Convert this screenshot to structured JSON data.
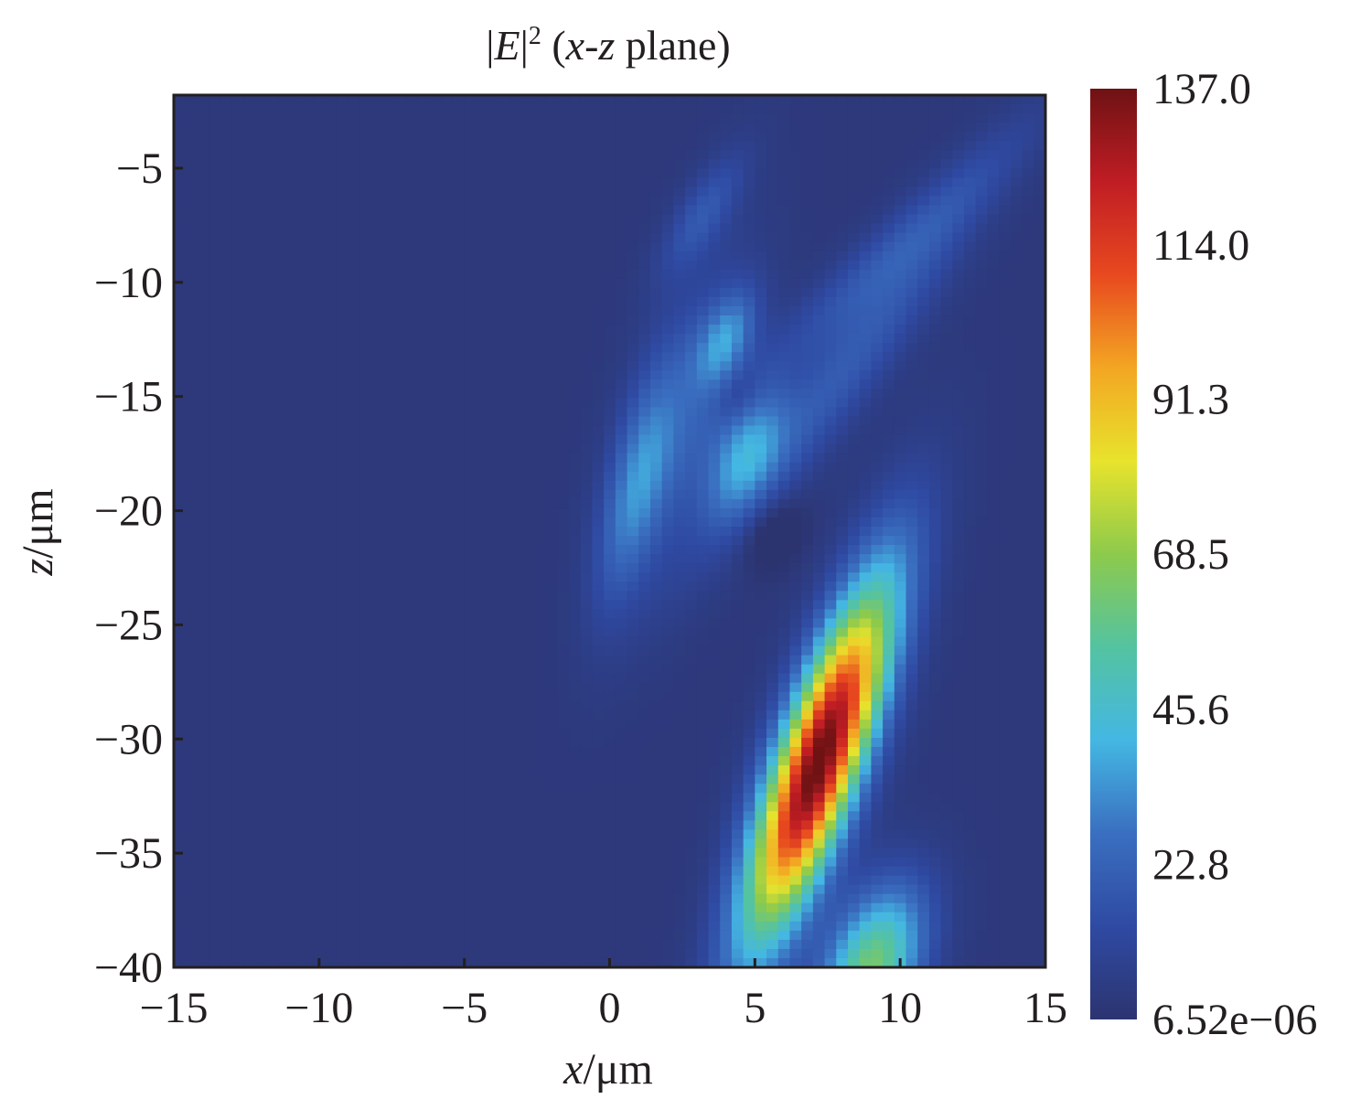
{
  "chart_data": {
    "type": "heatmap",
    "title": {
      "mod_open": "|",
      "symbol": "E",
      "mod_close": "|",
      "exponent": "2",
      "paren_open": " (",
      "var_x": "x",
      "dash": "-",
      "var_z": "z",
      "rest": " plane)"
    },
    "xlabel": {
      "var": "x",
      "unit": "/μm"
    },
    "ylabel": {
      "var": "z",
      "unit": "/μm"
    },
    "xlim": [
      -15,
      15
    ],
    "ylim": [
      -40,
      -1.8
    ],
    "x_ticks": [
      -15,
      -10,
      -5,
      0,
      5,
      10,
      15
    ],
    "x_tick_labels": [
      "−15",
      "−10",
      "−5",
      "0",
      "5",
      "10",
      "15"
    ],
    "y_ticks": [
      -5,
      -10,
      -15,
      -20,
      -25,
      -30,
      -35,
      -40
    ],
    "y_tick_labels": [
      "−5",
      "−10",
      "−15",
      "−20",
      "−25",
      "−30",
      "−35",
      "−40"
    ],
    "colorbar": {
      "min": 6.52e-06,
      "max": 137.0,
      "tick_values": [
        137.0,
        114.0,
        91.3,
        68.5,
        45.6,
        22.8,
        6.52e-06
      ],
      "tick_labels": [
        "137.0",
        "114.0",
        "91.3",
        "68.5",
        "45.6",
        "22.8",
        "6.52e−06"
      ],
      "colormap": "jet",
      "colors": [
        "#2c3470",
        "#2f4aa3",
        "#3a6fc0",
        "#44b7e3",
        "#54c3a1",
        "#8dca4c",
        "#e8e32c",
        "#f3a623",
        "#e8491f",
        "#c01d24",
        "#6e1214"
      ]
    },
    "field_features": [
      {
        "name": "main-focal-lobe",
        "x": 7.2,
        "z": -31,
        "peak": 137.0,
        "tilt_deg": 15,
        "x_halfwidth": 1.0,
        "z_halfwidth": 5.5
      },
      {
        "name": "beam-tail",
        "x": 9.0,
        "z": -40,
        "peak": 60.0,
        "tilt_deg": 15,
        "x_halfwidth": 1.1,
        "z_halfwidth": 2.5
      },
      {
        "name": "side-lobe-a",
        "x": 4.7,
        "z": -17.5,
        "peak": 32.0,
        "tilt_deg": 17,
        "x_halfwidth": 0.8,
        "z_halfwidth": 2.0
      },
      {
        "name": "side-lobe-b",
        "x": 4.0,
        "z": -12.5,
        "peak": 26.0,
        "tilt_deg": 17,
        "x_halfwidth": 0.6,
        "z_halfwidth": 1.5
      },
      {
        "name": "side-lobe-c",
        "x": 0.9,
        "z": -19,
        "peak": 24.0,
        "tilt_deg": 10,
        "x_halfwidth": 0.7,
        "z_halfwidth": 3.5
      },
      {
        "name": "fringe-1",
        "x": 8.0,
        "z": -14,
        "peak": 17.0,
        "tilt_deg": 30,
        "x_halfwidth": 0.9,
        "z_halfwidth": 6.0
      },
      {
        "name": "fringe-2",
        "x": 2.5,
        "z": -16,
        "peak": 16.0,
        "tilt_deg": 12,
        "x_halfwidth": 1.2,
        "z_halfwidth": 5.0
      },
      {
        "name": "fringe-3",
        "x": 3.2,
        "z": -7,
        "peak": 15.0,
        "tilt_deg": 25,
        "x_halfwidth": 0.6,
        "z_halfwidth": 2.0
      },
      {
        "name": "fringe-4",
        "x": 9.5,
        "z": -9,
        "peak": 14.0,
        "tilt_deg": 40,
        "x_halfwidth": 0.8,
        "z_halfwidth": 5.0
      },
      {
        "name": "dark-node-1",
        "x": 5.6,
        "z": -21,
        "peak": -10.0,
        "tilt_deg": 15,
        "x_halfwidth": 0.7,
        "z_halfwidth": 1.1
      },
      {
        "name": "dark-node-2",
        "x": 4.4,
        "z": -15,
        "peak": -8.0,
        "tilt_deg": 15,
        "x_halfwidth": 0.5,
        "z_halfwidth": 0.9
      }
    ]
  }
}
